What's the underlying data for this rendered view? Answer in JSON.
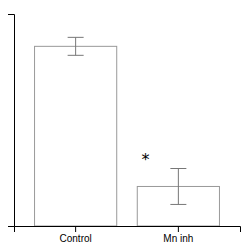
{
  "chart_data": {
    "type": "bar",
    "categories": [
      "Control",
      "Mn inh"
    ],
    "values": [
      100,
      22
    ],
    "errors": [
      5,
      10
    ],
    "colors": [
      "white",
      "white"
    ],
    "ylim": [
      0,
      118
    ],
    "yticks": [],
    "grid": false,
    "tick_labels": "x",
    "annotations": [
      {
        "text": "*",
        "category": "Mn inh"
      }
    ]
  }
}
